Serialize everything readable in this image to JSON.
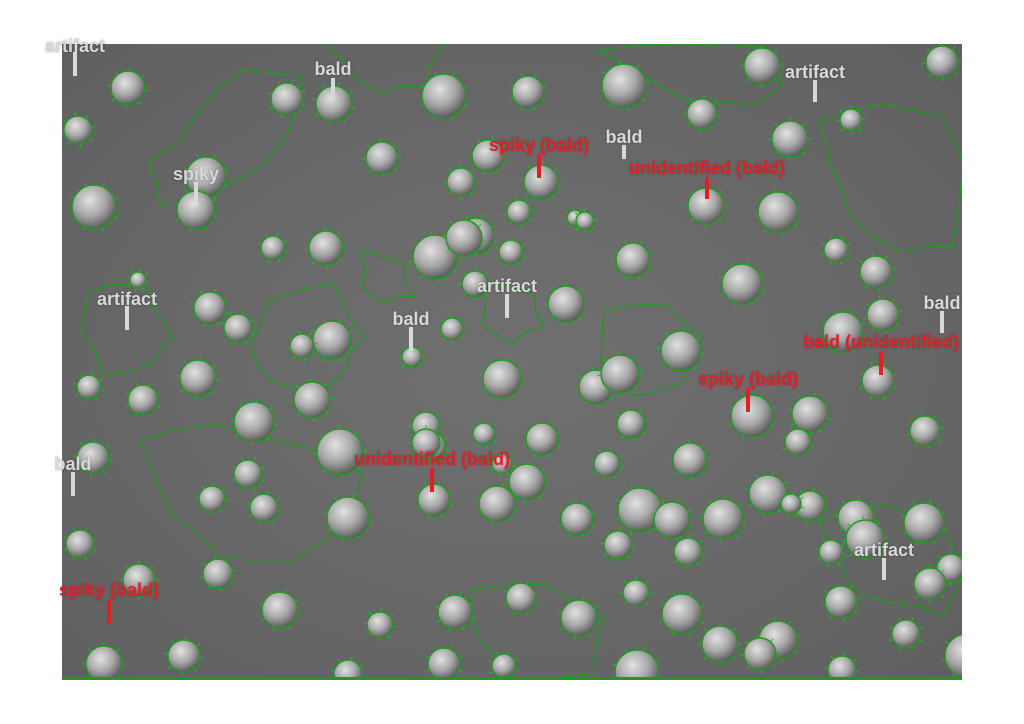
{
  "image": {
    "description_colors": {
      "background": "#ffffff",
      "substrate": "#6b6b6b",
      "outline": "#1f9a1f",
      "cell_light": "#d6d6d6",
      "label_white": "#d9d9d9",
      "label_red": "#e21f26"
    }
  },
  "labels": {
    "l1": "artifact",
    "l2": "bald",
    "l3": "artifact",
    "l4": "spiky (bald)",
    "l5": "bald",
    "l6": "unidentified (bald)",
    "l7": "spiky",
    "l8": "artifact",
    "l9": "artifact",
    "l10": "bald",
    "l11": "bald",
    "l12": "bald (unidentified)",
    "l13": "spiky (bald)",
    "l14": "bald",
    "l15": "unidentified (bald)",
    "l16": "artifact",
    "l17": "spiky (bald)"
  }
}
